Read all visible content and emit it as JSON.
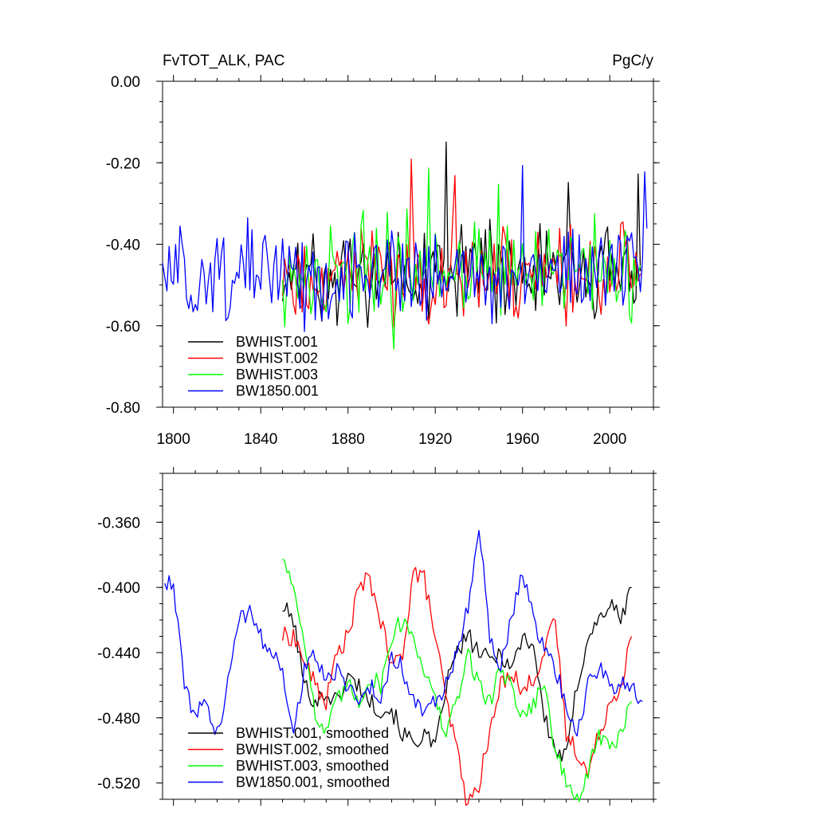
{
  "chart_data": [
    {
      "type": "line",
      "title": "FvTOT_ALK, PAC",
      "units": "PgC/y",
      "xlabel": "",
      "ylabel": "",
      "xlim": [
        1795,
        2020
      ],
      "ylim": [
        -0.8,
        0.0
      ],
      "x_ticks": [
        1800,
        1840,
        1880,
        1920,
        1960,
        2000
      ],
      "y_ticks": [
        0.0,
        -0.2,
        -0.4,
        -0.6,
        -0.8
      ],
      "y_tick_labels": [
        "0.00",
        "-0.20",
        "-0.40",
        "-0.60",
        "-0.80"
      ],
      "legend_position": "bottom-left",
      "series": [
        {
          "name": "BWHIST.001",
          "color": "#000000",
          "x_start": 1850,
          "x_end": 2014,
          "mean": -0.47,
          "amplitude": 0.09,
          "seed": 11
        },
        {
          "name": "BWHIST.002",
          "color": "#ff0000",
          "x_start": 1850,
          "x_end": 2014,
          "mean": -0.47,
          "amplitude": 0.09,
          "seed": 23
        },
        {
          "name": "BWHIST.003",
          "color": "#00ff00",
          "x_start": 1850,
          "x_end": 2014,
          "mean": -0.47,
          "amplitude": 0.09,
          "seed": 37
        },
        {
          "name": "BW1850.001",
          "color": "#0000ff",
          "x_start": 1795,
          "x_end": 2017,
          "mean": -0.47,
          "amplitude": 0.09,
          "seed": 51
        }
      ]
    },
    {
      "type": "line",
      "title": "",
      "xlabel": "",
      "ylabel": "",
      "xlim": [
        1795,
        2020
      ],
      "ylim": [
        -0.53,
        -0.33
      ],
      "x_ticks": [
        1800,
        1840,
        1880,
        1920,
        1960,
        2000
      ],
      "y_ticks": [
        -0.36,
        -0.4,
        -0.44,
        -0.48,
        -0.52
      ],
      "y_tick_labels": [
        "-0.360",
        "-0.400",
        "-0.440",
        "-0.480",
        "-0.520"
      ],
      "legend_position": "bottom-left",
      "series": [
        {
          "name": "BWHIST.001, smoothed",
          "color": "#000000",
          "x": [
            1850,
            1855,
            1860,
            1865,
            1870,
            1875,
            1880,
            1885,
            1890,
            1895,
            1900,
            1905,
            1910,
            1915,
            1920,
            1925,
            1930,
            1935,
            1940,
            1945,
            1950,
            1955,
            1960,
            1965,
            1970,
            1975,
            1980,
            1985,
            1990,
            1995,
            2000,
            2005,
            2010
          ],
          "y": [
            -0.412,
            -0.42,
            -0.46,
            -0.47,
            -0.465,
            -0.47,
            -0.455,
            -0.46,
            -0.47,
            -0.475,
            -0.475,
            -0.49,
            -0.495,
            -0.49,
            -0.5,
            -0.46,
            -0.44,
            -0.43,
            -0.44,
            -0.445,
            -0.44,
            -0.45,
            -0.43,
            -0.435,
            -0.48,
            -0.5,
            -0.505,
            -0.46,
            -0.43,
            -0.42,
            -0.41,
            -0.42,
            -0.4
          ]
        },
        {
          "name": "BWHIST.002, smoothed",
          "color": "#ff0000",
          "x": [
            1850,
            1855,
            1860,
            1865,
            1870,
            1875,
            1880,
            1885,
            1890,
            1895,
            1900,
            1905,
            1910,
            1915,
            1920,
            1925,
            1930,
            1935,
            1940,
            1945,
            1950,
            1955,
            1960,
            1965,
            1970,
            1975,
            1980,
            1985,
            1990,
            1995,
            2000,
            2005,
            2010
          ],
          "y": [
            -0.43,
            -0.43,
            -0.445,
            -0.46,
            -0.47,
            -0.44,
            -0.43,
            -0.4,
            -0.395,
            -0.42,
            -0.45,
            -0.44,
            -0.39,
            -0.395,
            -0.43,
            -0.47,
            -0.5,
            -0.535,
            -0.52,
            -0.49,
            -0.46,
            -0.45,
            -0.465,
            -0.455,
            -0.44,
            -0.42,
            -0.49,
            -0.5,
            -0.515,
            -0.49,
            -0.47,
            -0.46,
            -0.43
          ]
        },
        {
          "name": "BWHIST.003, smoothed",
          "color": "#00ff00",
          "x": [
            1850,
            1855,
            1860,
            1865,
            1870,
            1875,
            1880,
            1885,
            1890,
            1895,
            1900,
            1905,
            1910,
            1915,
            1920,
            1925,
            1930,
            1935,
            1940,
            1945,
            1950,
            1955,
            1960,
            1965,
            1970,
            1975,
            1980,
            1985,
            1990,
            1995,
            2000,
            2005,
            2010
          ],
          "y": [
            -0.38,
            -0.4,
            -0.43,
            -0.48,
            -0.49,
            -0.47,
            -0.46,
            -0.47,
            -0.455,
            -0.46,
            -0.43,
            -0.42,
            -0.43,
            -0.45,
            -0.47,
            -0.49,
            -0.47,
            -0.44,
            -0.46,
            -0.47,
            -0.45,
            -0.46,
            -0.48,
            -0.47,
            -0.46,
            -0.5,
            -0.52,
            -0.53,
            -0.515,
            -0.49,
            -0.5,
            -0.49,
            -0.47
          ]
        },
        {
          "name": "BW1850.001, smoothed",
          "color": "#0000ff",
          "x": [
            1796,
            1800,
            1805,
            1810,
            1815,
            1820,
            1825,
            1830,
            1835,
            1840,
            1845,
            1850,
            1855,
            1860,
            1865,
            1870,
            1875,
            1880,
            1885,
            1890,
            1895,
            1900,
            1905,
            1910,
            1915,
            1920,
            1925,
            1930,
            1935,
            1940,
            1945,
            1950,
            1955,
            1960,
            1965,
            1970,
            1975,
            1980,
            1985,
            1990,
            1995,
            2000,
            2005,
            2010,
            2015
          ],
          "y": [
            -0.395,
            -0.4,
            -0.46,
            -0.48,
            -0.47,
            -0.49,
            -0.46,
            -0.42,
            -0.415,
            -0.43,
            -0.44,
            -0.45,
            -0.49,
            -0.45,
            -0.44,
            -0.46,
            -0.45,
            -0.46,
            -0.47,
            -0.46,
            -0.47,
            -0.44,
            -0.45,
            -0.47,
            -0.475,
            -0.47,
            -0.46,
            -0.44,
            -0.41,
            -0.36,
            -0.43,
            -0.45,
            -0.42,
            -0.39,
            -0.42,
            -0.44,
            -0.45,
            -0.47,
            -0.49,
            -0.46,
            -0.45,
            -0.46,
            -0.46,
            -0.46,
            -0.47
          ]
        }
      ]
    }
  ]
}
